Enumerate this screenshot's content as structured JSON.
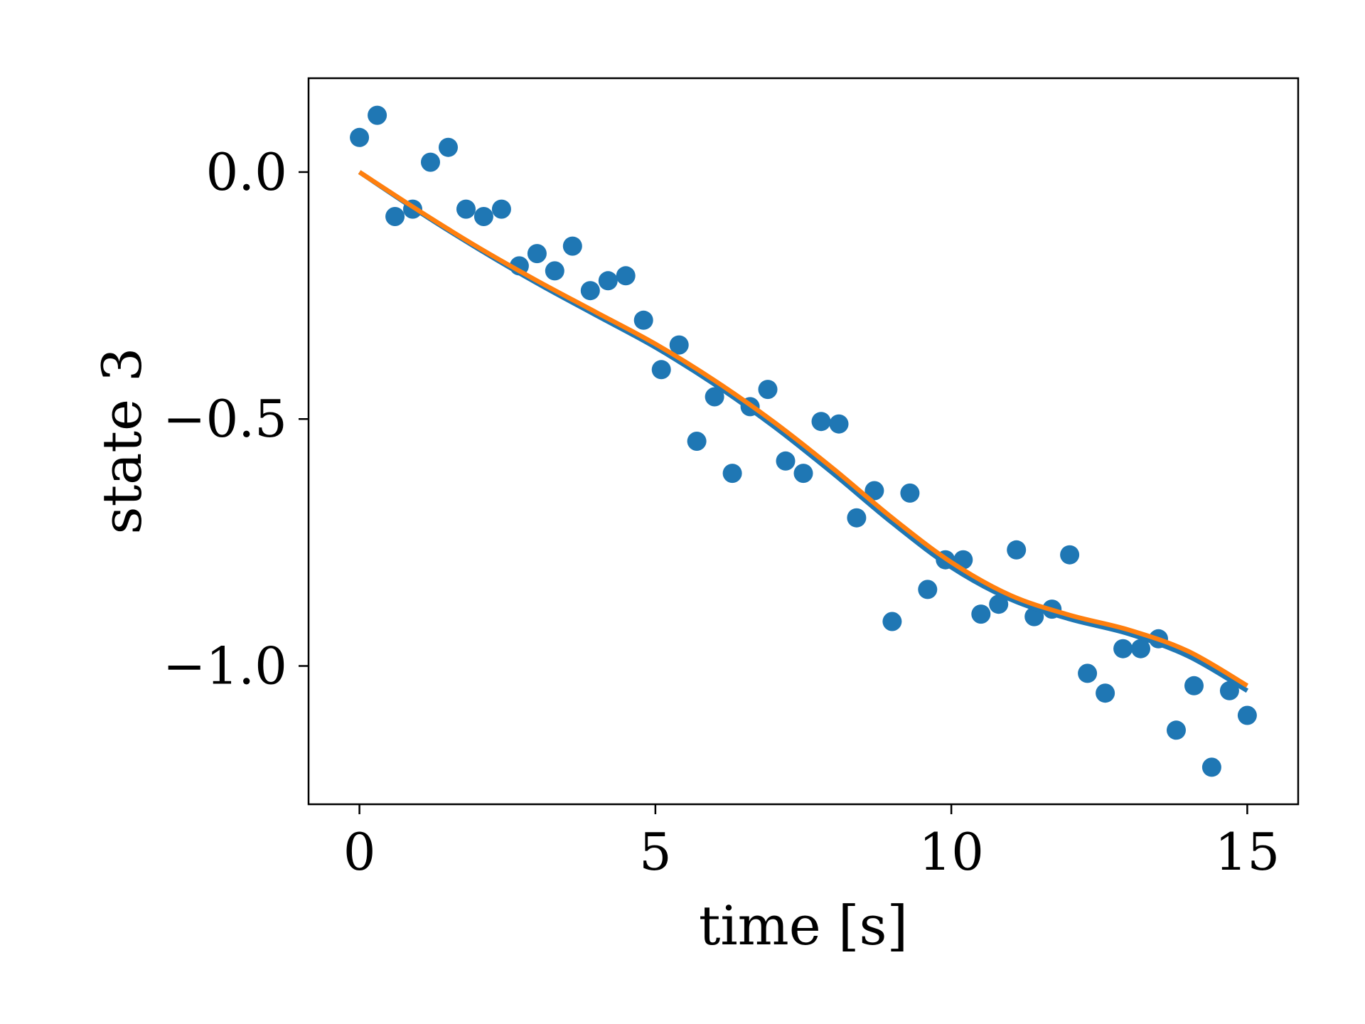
{
  "chart_data": {
    "type": "scatter",
    "title": "",
    "xlabel": "time [s]",
    "ylabel": "state 3",
    "xlim": [
      -0.86,
      15.86
    ],
    "ylim": [
      -1.28,
      0.19
    ],
    "xticks": [
      0,
      5,
      10,
      15
    ],
    "xtick_labels": [
      "0",
      "5",
      "10",
      "15"
    ],
    "yticks": [
      0.0,
      -0.5,
      -1.0
    ],
    "ytick_labels": [
      "0.0",
      "−0.5",
      "−1.0"
    ],
    "grid": false,
    "legend": "none",
    "series": [
      {
        "kind": "scatter",
        "color": "#1f77b4",
        "x": [
          0.0,
          0.3,
          0.6,
          0.9,
          1.2,
          1.5,
          1.8,
          2.1,
          2.4,
          2.7,
          3.0,
          3.3,
          3.6,
          3.9,
          4.2,
          4.5,
          4.8,
          5.1,
          5.4,
          5.7,
          6.0,
          6.3,
          6.6,
          6.9,
          7.2,
          7.5,
          7.8,
          8.1,
          8.4,
          8.7,
          9.0,
          9.3,
          9.6,
          9.9,
          10.2,
          10.5,
          10.8,
          11.1,
          11.4,
          11.7,
          12.0,
          12.3,
          12.6,
          12.9,
          13.2,
          13.5,
          13.8,
          14.1,
          14.4,
          14.7,
          15.0
        ],
        "y": [
          0.07,
          0.115,
          -0.09,
          -0.075,
          0.02,
          0.05,
          -0.075,
          -0.09,
          -0.075,
          -0.19,
          -0.165,
          -0.2,
          -0.15,
          -0.24,
          -0.22,
          -0.21,
          -0.3,
          -0.4,
          -0.35,
          -0.545,
          -0.455,
          -0.61,
          -0.475,
          -0.44,
          -0.585,
          -0.61,
          -0.505,
          -0.51,
          -0.7,
          -0.645,
          -0.91,
          -0.65,
          -0.845,
          -0.785,
          -0.785,
          -0.895,
          -0.875,
          -0.765,
          -0.9,
          -0.885,
          -0.775,
          -1.015,
          -1.055,
          -0.965,
          -0.965,
          -0.945,
          -1.13,
          -1.04,
          -1.205,
          -1.05,
          -1.1
        ]
      },
      {
        "kind": "line",
        "color": "#1f77b4",
        "x": [
          0,
          1,
          2,
          3,
          4,
          5,
          6,
          7,
          8,
          9,
          10,
          11,
          12,
          13,
          14,
          15
        ],
        "y": [
          0.0,
          -0.08,
          -0.155,
          -0.225,
          -0.29,
          -0.355,
          -0.43,
          -0.515,
          -0.61,
          -0.71,
          -0.8,
          -0.865,
          -0.905,
          -0.935,
          -0.98,
          -1.05
        ]
      },
      {
        "kind": "line",
        "color": "#ff7f0e",
        "x": [
          0,
          1,
          2,
          3,
          4,
          5,
          6,
          7,
          8,
          9,
          10,
          11,
          12,
          13,
          14,
          15
        ],
        "y": [
          0.0,
          -0.078,
          -0.152,
          -0.22,
          -0.284,
          -0.348,
          -0.422,
          -0.506,
          -0.6,
          -0.7,
          -0.79,
          -0.857,
          -0.897,
          -0.927,
          -0.97,
          -1.04
        ]
      }
    ]
  }
}
